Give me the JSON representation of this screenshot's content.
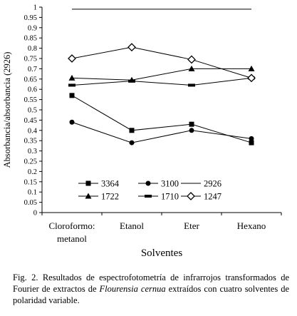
{
  "chart_data": {
    "type": "line",
    "categories": [
      "Cloroformo: metanol",
      "Etanol",
      "Eter",
      "Hexano"
    ],
    "category_lines": [
      [
        "Cloroformo:",
        "metanol"
      ],
      [
        "Etanol"
      ],
      [
        "Eter"
      ],
      [
        "Hexano"
      ]
    ],
    "xlabel": "Solventes",
    "ylabel": "Absorbancia/absorbancia (2926)",
    "ylim": [
      0,
      1
    ],
    "yticks": [
      "0",
      "0.05",
      "0.1",
      "0.15",
      "0.2",
      "0.25",
      "0.3",
      "0.35",
      "0.4",
      "0.45",
      "0.5",
      "0.55",
      "0.6",
      "0.65",
      "0.7",
      "0.75",
      "0.8",
      "0.85",
      "0.9",
      "0.95",
      "1"
    ],
    "grid": false,
    "legend_position": "lower-center",
    "series": [
      {
        "name": "3364",
        "marker": "square",
        "values": [
          0.57,
          0.4,
          0.43,
          0.34
        ]
      },
      {
        "name": "3100",
        "marker": "circle",
        "values": [
          0.44,
          0.34,
          0.4,
          0.36
        ]
      },
      {
        "name": "2926",
        "marker": "none",
        "values": [
          0.99,
          0.99,
          0.99,
          0.99
        ]
      },
      {
        "name": "1722",
        "marker": "triangle",
        "values": [
          0.655,
          0.645,
          0.7,
          0.7
        ]
      },
      {
        "name": "1710",
        "marker": "bar",
        "values": [
          0.62,
          0.64,
          0.62,
          0.655
        ]
      },
      {
        "name": "1247",
        "marker": "diamond",
        "values": [
          0.75,
          0.805,
          0.745,
          0.655
        ]
      }
    ]
  },
  "caption": {
    "prefix": "Fig. 2.  Resultados de espectrofotometría de infrarrojos transformados de Fourier de extractos de ",
    "species": "Flourensia cernua",
    "suffix": " extraídos con cuatro solventes de polaridad variable."
  }
}
